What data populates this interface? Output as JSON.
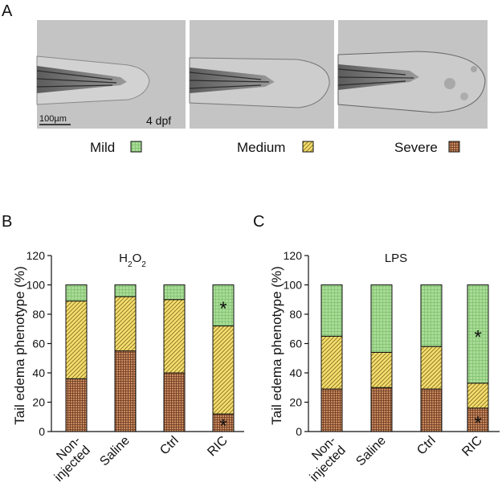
{
  "panel_a": {
    "letter": "A",
    "scale_bar": "100µm",
    "age": "4 dpf",
    "legend": [
      {
        "label": "Mild",
        "pattern": "mild"
      },
      {
        "label": "Medium",
        "pattern": "medium"
      },
      {
        "label": "Severe",
        "pattern": "severe"
      }
    ]
  },
  "chart_data": [
    {
      "panel": "B",
      "type": "bar",
      "stacked": true,
      "title": "H2O2",
      "ylabel": "Tail edema phenotype (%)",
      "ylim": [
        0,
        120
      ],
      "yticks": [
        0,
        20,
        40,
        60,
        80,
        100,
        120
      ],
      "categories": [
        "Non-injected",
        "Saline",
        "Ctrl",
        "RIC"
      ],
      "series": [
        {
          "name": "Severe",
          "values": [
            36,
            55,
            40,
            12
          ]
        },
        {
          "name": "Medium",
          "values": [
            53,
            37,
            50,
            60
          ]
        },
        {
          "name": "Mild",
          "values": [
            11,
            8,
            10,
            28
          ]
        }
      ],
      "annotations": [
        {
          "text": "*",
          "category": "RIC",
          "series": "Mild"
        },
        {
          "text": "*",
          "category": "RIC",
          "series": "Severe"
        }
      ]
    },
    {
      "panel": "C",
      "type": "bar",
      "stacked": true,
      "title": "LPS",
      "ylabel": "Tail edema phenotype (%)",
      "ylim": [
        0,
        120
      ],
      "yticks": [
        0,
        20,
        40,
        60,
        80,
        100,
        120
      ],
      "categories": [
        "Non-injected",
        "Saline",
        "Ctrl",
        "RIC"
      ],
      "series": [
        {
          "name": "Severe",
          "values": [
            29,
            30,
            29,
            16
          ]
        },
        {
          "name": "Medium",
          "values": [
            36,
            24,
            29,
            17
          ]
        },
        {
          "name": "Mild",
          "values": [
            35,
            46,
            42,
            67
          ]
        }
      ],
      "annotations": [
        {
          "text": "*",
          "category": "RIC",
          "series": "Mild"
        },
        {
          "text": "*",
          "category": "RIC",
          "series": "Severe"
        }
      ]
    }
  ],
  "colors": {
    "mild_fill": "#a9dc97",
    "mild_line": "#7fbf6d",
    "medium_fill": "#f3df6e",
    "medium_line": "#8a6d1f",
    "severe_fill": "#c98a5e",
    "severe_line": "#6b3a22",
    "photo_bg": "#c4c4c4"
  }
}
